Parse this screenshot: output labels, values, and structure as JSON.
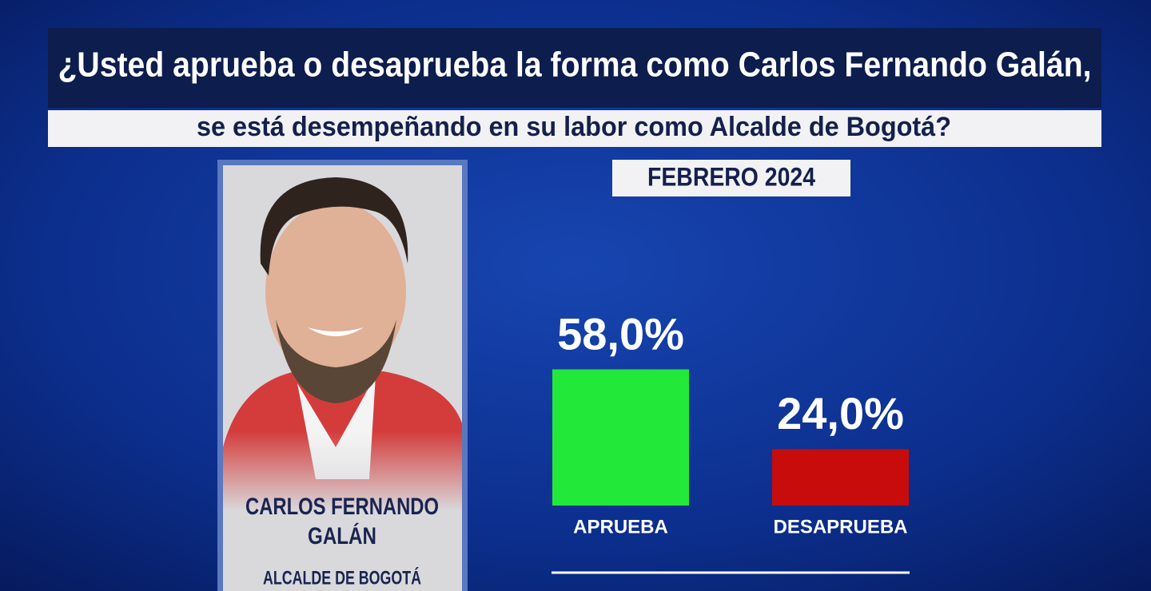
{
  "chart_data": {
    "type": "bar",
    "title": [
      "¿Usted aprueba o desaprueba la forma como Carlos Fernando Galán,",
      "se está desempeñando en su labor como Alcalde de Bogotá?"
    ],
    "subtitle": "FEBRERO 2024",
    "categories": [
      "APRUEBA",
      "DESAPRUEBA"
    ],
    "series": [
      {
        "colors": [
          "#22e83a",
          "#c80c0c"
        ],
        "values": [
          58,
          24
        ],
        "value_labels": [
          "58,0%",
          "24,0%"
        ]
      }
    ]
  },
  "person": {
    "name": [
      "CARLOS FERNANDO",
      "GALÁN"
    ],
    "role": "ALCALDE DE BOGOTÁ"
  }
}
